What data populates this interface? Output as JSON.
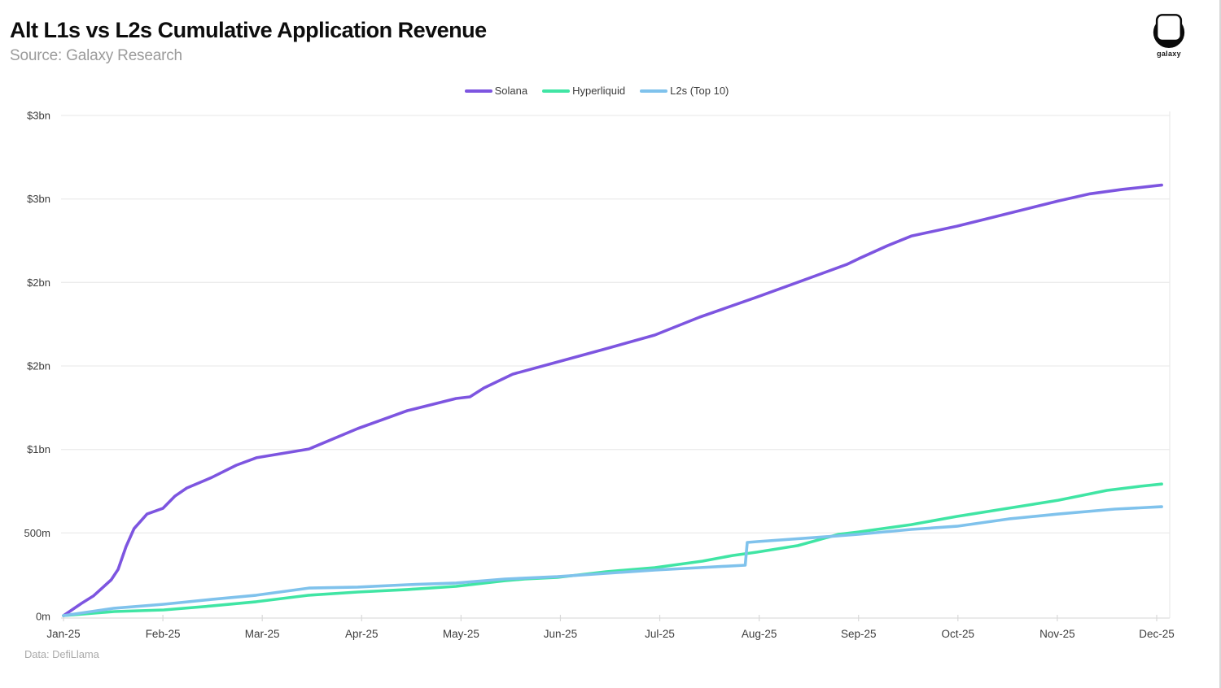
{
  "header": {
    "title": "Alt L1s vs L2s Cumulative Application Revenue",
    "subtitle": "Source: Galaxy Research",
    "logo_text": "galaxy"
  },
  "footer": {
    "note": "Data: DefiLlama"
  },
  "chart_data": {
    "type": "line",
    "title": "Alt L1s vs L2s Cumulative Application Revenue",
    "values_unit": "USD millions (cumulative)",
    "x_axis": "months Jan-25 through Dec-25, x given as month index 0-11",
    "x_tick_labels": [
      "Jan-25",
      "Feb-25",
      "Mar-25",
      "Apr-25",
      "May-25",
      "Jun-25",
      "Jul-25",
      "Aug-25",
      "Sep-25",
      "Oct-25",
      "Nov-25",
      "Dec-25"
    ],
    "y_ticks": [
      {
        "label": "0m",
        "value": 0
      },
      {
        "label": "500m",
        "value": 500
      },
      {
        "label": "$1bn",
        "value": 1000
      },
      {
        "label": "$2bn",
        "value": 1500
      },
      {
        "label": "$2bn",
        "value": 2000
      },
      {
        "label": "$3bn",
        "value": 2500
      },
      {
        "label": "$3bn",
        "value": 3000
      }
    ],
    "ylim": [
      0,
      3000
    ],
    "grid": "horizontal",
    "legend_position": "top-center",
    "series": [
      {
        "name": "Solana",
        "color": "#7d55e0",
        "points": [
          [
            0,
            5
          ],
          [
            0.18,
            78
          ],
          [
            0.3,
            122
          ],
          [
            0.48,
            219
          ],
          [
            0.55,
            282
          ],
          [
            0.63,
            419
          ],
          [
            0.71,
            526
          ],
          [
            0.84,
            613
          ],
          [
            1.0,
            647
          ],
          [
            1.12,
            720
          ],
          [
            1.24,
            769
          ],
          [
            1.49,
            832
          ],
          [
            1.74,
            906
          ],
          [
            1.94,
            950
          ],
          [
            2.23,
            979
          ],
          [
            2.47,
            1003
          ],
          [
            2.96,
            1125
          ],
          [
            3.46,
            1232
          ],
          [
            3.95,
            1305
          ],
          [
            4.09,
            1315
          ],
          [
            4.23,
            1368
          ],
          [
            4.52,
            1451
          ],
          [
            4.97,
            1524
          ],
          [
            5.42,
            1597
          ],
          [
            5.95,
            1685
          ],
          [
            6.4,
            1792
          ],
          [
            6.98,
            1913
          ],
          [
            7.39,
            2001
          ],
          [
            7.88,
            2108
          ],
          [
            8.0,
            2142
          ],
          [
            8.29,
            2220
          ],
          [
            8.53,
            2278
          ],
          [
            8.99,
            2337
          ],
          [
            9.35,
            2390
          ],
          [
            10.01,
            2488
          ],
          [
            10.33,
            2531
          ],
          [
            10.66,
            2558
          ],
          [
            11.05,
            2583
          ]
        ]
      },
      {
        "name": "Hyperliquid",
        "color": "#40e5a4",
        "points": [
          [
            0,
            5
          ],
          [
            0.51,
            29
          ],
          [
            1.01,
            39
          ],
          [
            1.49,
            63
          ],
          [
            1.94,
            88
          ],
          [
            2.47,
            127
          ],
          [
            2.96,
            146
          ],
          [
            3.46,
            161
          ],
          [
            3.95,
            180
          ],
          [
            4.44,
            214
          ],
          [
            4.64,
            224
          ],
          [
            4.97,
            234
          ],
          [
            5.46,
            268
          ],
          [
            5.95,
            292
          ],
          [
            6.43,
            331
          ],
          [
            6.73,
            365
          ],
          [
            6.98,
            385
          ],
          [
            7.39,
            424
          ],
          [
            7.8,
            492
          ],
          [
            8.0,
            506
          ],
          [
            8.53,
            550
          ],
          [
            8.99,
            599
          ],
          [
            9.51,
            648
          ],
          [
            10.01,
            696
          ],
          [
            10.5,
            755
          ],
          [
            10.83,
            779
          ],
          [
            11.05,
            793
          ]
        ]
      },
      {
        "name": "L2s (Top 10)",
        "color": "#7fc2ec",
        "points": [
          [
            0,
            5
          ],
          [
            0.51,
            49
          ],
          [
            1.01,
            73
          ],
          [
            1.49,
            102
          ],
          [
            1.94,
            127
          ],
          [
            2.47,
            170
          ],
          [
            2.96,
            176
          ],
          [
            3.46,
            190
          ],
          [
            3.95,
            200
          ],
          [
            4.44,
            224
          ],
          [
            4.97,
            238
          ],
          [
            5.46,
            258
          ],
          [
            5.95,
            278
          ],
          [
            6.4,
            292
          ],
          [
            6.86,
            307
          ],
          [
            6.88,
            443
          ],
          [
            6.98,
            448
          ],
          [
            7.55,
            472
          ],
          [
            8.0,
            492
          ],
          [
            8.53,
            521
          ],
          [
            8.99,
            540
          ],
          [
            9.51,
            584
          ],
          [
            10.01,
            613
          ],
          [
            10.58,
            643
          ],
          [
            11.05,
            657
          ]
        ]
      }
    ]
  }
}
